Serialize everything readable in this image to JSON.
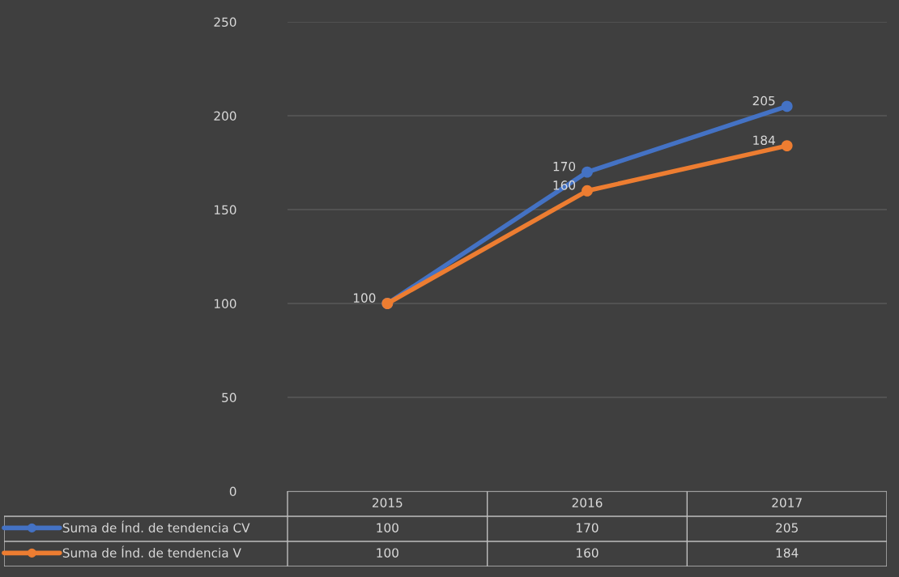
{
  "chart_data": {
    "type": "line",
    "categories": [
      "2015",
      "2016",
      "2017"
    ],
    "series": [
      {
        "name": "Suma de Índ. de tendencia CV",
        "color": "#4472c4",
        "values": [
          100,
          170,
          205
        ]
      },
      {
        "name": "Suma de Índ. de tendencia V",
        "color": "#ed7d31",
        "values": [
          100,
          160,
          184
        ]
      }
    ],
    "annotations": [
      {
        "text": "100",
        "x": "2015",
        "y": 100
      },
      {
        "text": "170",
        "x": "2016",
        "y": 170
      },
      {
        "text": "205",
        "x": "2017",
        "y": 205
      },
      {
        "text": "160",
        "x": "2016",
        "y": 160
      },
      {
        "text": "184",
        "x": "2017",
        "y": 184
      }
    ],
    "ylim": [
      0,
      250
    ],
    "yticks": [
      0,
      50,
      100,
      150,
      200,
      250
    ],
    "grid": "y",
    "legend": "bottom",
    "data_labels": true,
    "marker": "circle"
  }
}
